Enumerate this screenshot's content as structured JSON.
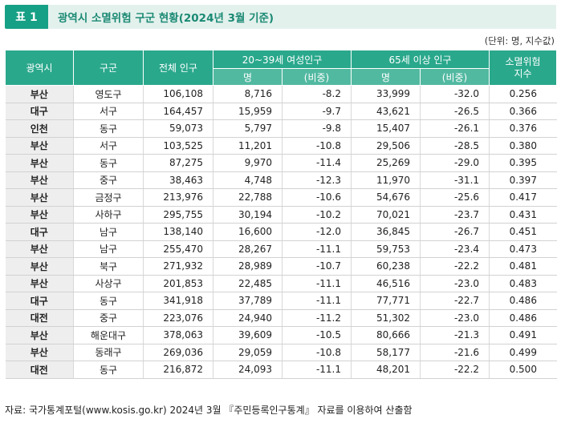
{
  "header": {
    "table_label": "표 1",
    "title": "광역시 소멸위험 구군 현황(2024년 3월 기준)"
  },
  "unit_note": "(단위: 명, 지수값)",
  "columns": {
    "city": "광역시",
    "district": "구군",
    "total": "전체 인구",
    "women_group": "20~39세 여성인구",
    "women_count": "명",
    "women_ratio": "(비중)",
    "elderly_group": "65세 이상 인구",
    "elderly_count": "명",
    "elderly_ratio": "(비중)",
    "index_line1": "소멸위험",
    "index_line2": "지수"
  },
  "rows": [
    {
      "city": "부산",
      "district": "영도구",
      "total": "106,108",
      "women": "8,716",
      "women_ratio": "-8.2",
      "elderly": "33,999",
      "elderly_ratio": "-32.0",
      "index": "0.256"
    },
    {
      "city": "대구",
      "district": "서구",
      "total": "164,457",
      "women": "15,959",
      "women_ratio": "-9.7",
      "elderly": "43,621",
      "elderly_ratio": "-26.5",
      "index": "0.366"
    },
    {
      "city": "인천",
      "district": "동구",
      "total": "59,073",
      "women": "5,797",
      "women_ratio": "-9.8",
      "elderly": "15,407",
      "elderly_ratio": "-26.1",
      "index": "0.376"
    },
    {
      "city": "부산",
      "district": "서구",
      "total": "103,525",
      "women": "11,201",
      "women_ratio": "-10.8",
      "elderly": "29,506",
      "elderly_ratio": "-28.5",
      "index": "0.380"
    },
    {
      "city": "부산",
      "district": "동구",
      "total": "87,275",
      "women": "9,970",
      "women_ratio": "-11.4",
      "elderly": "25,269",
      "elderly_ratio": "-29.0",
      "index": "0.395"
    },
    {
      "city": "부산",
      "district": "중구",
      "total": "38,463",
      "women": "4,748",
      "women_ratio": "-12.3",
      "elderly": "11,970",
      "elderly_ratio": "-31.1",
      "index": "0.397"
    },
    {
      "city": "부산",
      "district": "금정구",
      "total": "213,976",
      "women": "22,788",
      "women_ratio": "-10.6",
      "elderly": "54,676",
      "elderly_ratio": "-25.6",
      "index": "0.417"
    },
    {
      "city": "부산",
      "district": "사하구",
      "total": "295,755",
      "women": "30,194",
      "women_ratio": "-10.2",
      "elderly": "70,021",
      "elderly_ratio": "-23.7",
      "index": "0.431"
    },
    {
      "city": "대구",
      "district": "남구",
      "total": "138,140",
      "women": "16,600",
      "women_ratio": "-12.0",
      "elderly": "36,845",
      "elderly_ratio": "-26.7",
      "index": "0.451"
    },
    {
      "city": "부산",
      "district": "남구",
      "total": "255,470",
      "women": "28,267",
      "women_ratio": "-11.1",
      "elderly": "59,753",
      "elderly_ratio": "-23.4",
      "index": "0.473"
    },
    {
      "city": "부산",
      "district": "북구",
      "total": "271,932",
      "women": "28,989",
      "women_ratio": "-10.7",
      "elderly": "60,238",
      "elderly_ratio": "-22.2",
      "index": "0.481"
    },
    {
      "city": "부산",
      "district": "사상구",
      "total": "201,853",
      "women": "22,485",
      "women_ratio": "-11.1",
      "elderly": "46,516",
      "elderly_ratio": "-23.0",
      "index": "0.483"
    },
    {
      "city": "대구",
      "district": "동구",
      "total": "341,918",
      "women": "37,789",
      "women_ratio": "-11.1",
      "elderly": "77,771",
      "elderly_ratio": "-22.7",
      "index": "0.486"
    },
    {
      "city": "대전",
      "district": "중구",
      "total": "223,076",
      "women": "24,940",
      "women_ratio": "-11.2",
      "elderly": "51,302",
      "elderly_ratio": "-23.0",
      "index": "0.486"
    },
    {
      "city": "부산",
      "district": "해운대구",
      "total": "378,063",
      "women": "39,609",
      "women_ratio": "-10.5",
      "elderly": "80,666",
      "elderly_ratio": "-21.3",
      "index": "0.491"
    },
    {
      "city": "부산",
      "district": "동래구",
      "total": "269,036",
      "women": "29,059",
      "women_ratio": "-10.8",
      "elderly": "58,177",
      "elderly_ratio": "-21.6",
      "index": "0.499"
    },
    {
      "city": "대전",
      "district": "동구",
      "total": "216,872",
      "women": "24,093",
      "women_ratio": "-11.1",
      "elderly": "48,201",
      "elderly_ratio": "-22.2",
      "index": "0.500"
    }
  ],
  "source": "자료: 국가통계포털(www.kosis.go.kr) 2024년 3월 『주민등록인구통계』 자료를 이용하여 산출함",
  "colors": {
    "accent": "#16a085",
    "header_bg": "#2aa88c",
    "subheader_bg": "#52b9a1",
    "title_bg": "#e3f1ed",
    "city_cell_bg": "#eeeeee"
  }
}
